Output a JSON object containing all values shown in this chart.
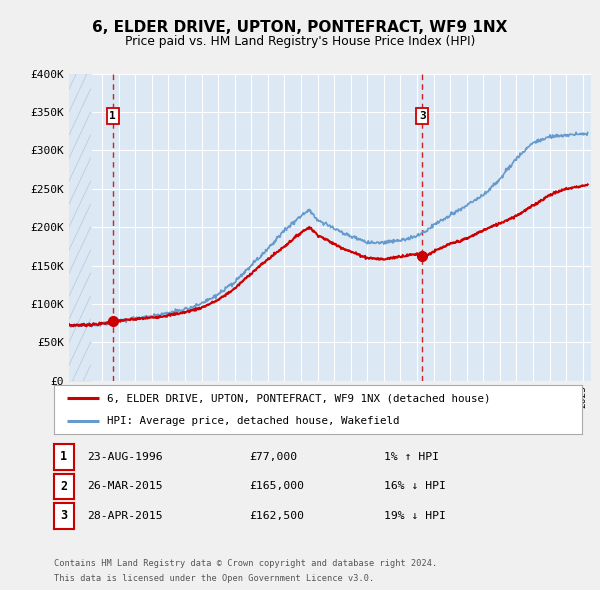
{
  "title": "6, ELDER DRIVE, UPTON, PONTEFRACT, WF9 1NX",
  "subtitle": "Price paid vs. HM Land Registry's House Price Index (HPI)",
  "xmin": 1994.0,
  "xmax": 2025.5,
  "ymin": 0,
  "ymax": 400000,
  "yticks": [
    0,
    50000,
    100000,
    150000,
    200000,
    250000,
    300000,
    350000,
    400000
  ],
  "ytick_labels": [
    "£0",
    "£50K",
    "£100K",
    "£150K",
    "£200K",
    "£250K",
    "£300K",
    "£350K",
    "£400K"
  ],
  "hpi_color": "#6699cc",
  "price_color": "#cc0000",
  "bg_color": "#dce9f5",
  "grid_color": "#ffffff",
  "fig_bg": "#f0f0f0",
  "transaction1": {
    "label": "1",
    "date": "23-AUG-1996",
    "x": 1996.64,
    "price": 77000,
    "pct": "1%",
    "dir": "↑"
  },
  "transaction2": {
    "label": "2",
    "date": "26-MAR-2015",
    "x": 2015.22,
    "price": 165000,
    "pct": "16%",
    "dir": "↓"
  },
  "transaction3": {
    "label": "3",
    "date": "28-APR-2015",
    "x": 2015.32,
    "price": 162500,
    "pct": "19%",
    "dir": "↓"
  },
  "legend_line1": "6, ELDER DRIVE, UPTON, PONTEFRACT, WF9 1NX (detached house)",
  "legend_line2": "HPI: Average price, detached house, Wakefield",
  "footer1": "Contains HM Land Registry data © Crown copyright and database right 2024.",
  "footer2": "This data is licensed under the Open Government Licence v3.0.",
  "red_knots_x": [
    1994.0,
    1995.0,
    1996.0,
    1997.0,
    1998.0,
    1999.0,
    2000.0,
    2001.0,
    2002.0,
    2003.0,
    2004.0,
    2005.0,
    2006.0,
    2007.0,
    2008.0,
    2008.5,
    2009.0,
    2010.0,
    2011.0,
    2012.0,
    2013.0,
    2014.0,
    2015.0,
    2015.5,
    2016.0,
    2017.0,
    2018.0,
    2019.0,
    2020.0,
    2021.0,
    2022.0,
    2023.0,
    2024.0,
    2025.3
  ],
  "red_knots_y": [
    72000,
    72500,
    74000,
    78000,
    80000,
    82000,
    85000,
    89000,
    95000,
    105000,
    120000,
    140000,
    158000,
    175000,
    193000,
    200000,
    190000,
    178000,
    168000,
    160000,
    158000,
    162000,
    165000,
    162500,
    168000,
    178000,
    185000,
    196000,
    205000,
    215000,
    228000,
    242000,
    250000,
    255000
  ],
  "blue_knots_x": [
    1994.0,
    1995.0,
    1996.0,
    1997.0,
    1998.0,
    1999.0,
    2000.0,
    2001.0,
    2002.0,
    2003.0,
    2004.0,
    2005.0,
    2006.0,
    2007.0,
    2008.0,
    2008.5,
    2009.0,
    2010.0,
    2011.0,
    2012.0,
    2013.0,
    2014.0,
    2015.0,
    2015.5,
    2016.0,
    2017.0,
    2018.0,
    2019.0,
    2020.0,
    2021.0,
    2022.0,
    2023.0,
    2024.0,
    2025.3
  ],
  "blue_knots_y": [
    72000,
    72500,
    74000,
    78000,
    81000,
    84000,
    88000,
    93000,
    100000,
    112000,
    128000,
    150000,
    172000,
    196000,
    215000,
    222000,
    210000,
    198000,
    188000,
    180000,
    180000,
    183000,
    188000,
    195000,
    203000,
    215000,
    228000,
    242000,
    262000,
    290000,
    310000,
    318000,
    320000,
    322000
  ]
}
